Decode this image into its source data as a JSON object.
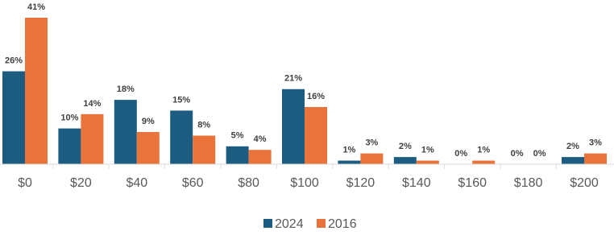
{
  "chart_data": {
    "type": "bar",
    "categories": [
      "$0",
      "$20",
      "$40",
      "$60",
      "$80",
      "$100",
      "$120",
      "$140",
      "$160",
      "$180",
      "$200"
    ],
    "series": [
      {
        "name": "2024",
        "color": "#1c5c80",
        "values": [
          26,
          10,
          18,
          15,
          5,
          21,
          1,
          2,
          0,
          0,
          2
        ],
        "value_labels": [
          "26%",
          "10%",
          "18%",
          "15%",
          "5%",
          "21%",
          "1%",
          "2%",
          "0%",
          "0%",
          "2%"
        ]
      },
      {
        "name": "2016",
        "color": "#e8743b",
        "values": [
          41,
          14,
          9,
          8,
          4,
          16,
          3,
          1,
          1,
          0,
          3
        ],
        "value_labels": [
          "41%",
          "14%",
          "9%",
          "8%",
          "4%",
          "16%",
          "3%",
          "1%",
          "1%",
          "0%",
          "3%"
        ]
      }
    ],
    "legend": "bottom"
  }
}
